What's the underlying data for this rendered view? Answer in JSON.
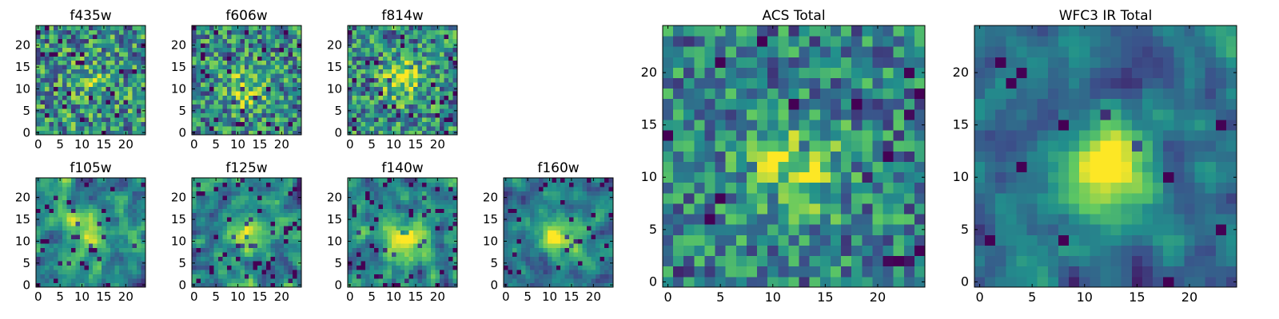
{
  "figure": {
    "colormap": "viridis",
    "colors": [
      "#440154",
      "#3b528b",
      "#21908c",
      "#5dc863",
      "#fde725"
    ]
  },
  "chart_data": [
    {
      "type": "heatmap",
      "title": "f435w",
      "grid_size": 25,
      "xticks": [
        "0",
        "5",
        "10",
        "15",
        "20"
      ],
      "yticks": [
        "0",
        "5",
        "10",
        "15",
        "20"
      ],
      "xlim": [
        0,
        25
      ],
      "ylim": [
        0,
        25
      ],
      "peak": [
        12,
        12
      ],
      "seed": 11,
      "contrast": 0.2,
      "noise": 0.85,
      "smooth": 0,
      "darkness": 0.05
    },
    {
      "type": "heatmap",
      "title": "f606w",
      "grid_size": 25,
      "xticks": [
        "0",
        "5",
        "10",
        "15",
        "20"
      ],
      "yticks": [
        "0",
        "5",
        "10",
        "15",
        "20"
      ],
      "xlim": [
        0,
        25
      ],
      "ylim": [
        0,
        25
      ],
      "peak": [
        12,
        10
      ],
      "seed": 23,
      "contrast": 0.35,
      "noise": 0.8,
      "smooth": 0,
      "darkness": 0.05
    },
    {
      "type": "heatmap",
      "title": "f814w",
      "grid_size": 25,
      "xticks": [
        "0",
        "5",
        "10",
        "15",
        "20"
      ],
      "yticks": [
        "0",
        "5",
        "10",
        "15",
        "20"
      ],
      "xlim": [
        0,
        25
      ],
      "ylim": [
        0,
        25
      ],
      "peak": [
        12,
        12
      ],
      "seed": 37,
      "contrast": 0.4,
      "noise": 0.8,
      "smooth": 0,
      "darkness": 0.05
    },
    {
      "type": "heatmap",
      "title": "f105w",
      "grid_size": 25,
      "xticks": [
        "0",
        "5",
        "10",
        "15",
        "20"
      ],
      "yticks": [
        "0",
        "5",
        "10",
        "15",
        "20"
      ],
      "xlim": [
        0,
        25
      ],
      "ylim": [
        0,
        25
      ],
      "peak": [
        12,
        12
      ],
      "seed": 41,
      "contrast": 0.45,
      "noise": 0.75,
      "smooth": 1,
      "darkness": 0.07
    },
    {
      "type": "heatmap",
      "title": "f125w",
      "grid_size": 25,
      "xticks": [
        "0",
        "5",
        "10",
        "15",
        "20"
      ],
      "yticks": [
        "0",
        "5",
        "10",
        "15",
        "20"
      ],
      "xlim": [
        0,
        25
      ],
      "ylim": [
        0,
        25
      ],
      "peak": [
        13,
        11
      ],
      "seed": 53,
      "contrast": 0.4,
      "noise": 0.75,
      "smooth": 1,
      "darkness": 0.07
    },
    {
      "type": "heatmap",
      "title": "f140w",
      "grid_size": 25,
      "xticks": [
        "0",
        "5",
        "10",
        "15",
        "20"
      ],
      "yticks": [
        "0",
        "5",
        "10",
        "15",
        "20"
      ],
      "xlim": [
        0,
        25
      ],
      "ylim": [
        0,
        25
      ],
      "peak": [
        13,
        10
      ],
      "seed": 67,
      "contrast": 0.5,
      "noise": 0.75,
      "smooth": 1,
      "darkness": 0.08
    },
    {
      "type": "heatmap",
      "title": "f160w",
      "grid_size": 25,
      "xticks": [
        "0",
        "5",
        "10",
        "15",
        "20"
      ],
      "yticks": [
        "0",
        "5",
        "10",
        "15",
        "20"
      ],
      "xlim": [
        0,
        25
      ],
      "ylim": [
        0,
        25
      ],
      "peak": [
        12,
        11
      ],
      "seed": 79,
      "contrast": 0.6,
      "noise": 0.6,
      "smooth": 1,
      "darkness": 0.05
    },
    {
      "type": "heatmap",
      "title": "ACS Total",
      "grid_size": 25,
      "xticks": [
        "0",
        "5",
        "10",
        "15",
        "20"
      ],
      "yticks": [
        "0",
        "5",
        "10",
        "15",
        "20"
      ],
      "xlim": [
        0,
        25
      ],
      "ylim": [
        0,
        25
      ],
      "peak": [
        12,
        11
      ],
      "seed": 97,
      "contrast": 0.4,
      "noise": 0.7,
      "smooth": 0,
      "darkness": 0.03
    },
    {
      "type": "heatmap",
      "title": "WFC3 IR Total",
      "grid_size": 25,
      "xticks": [
        "0",
        "5",
        "10",
        "15",
        "20"
      ],
      "yticks": [
        "0",
        "5",
        "10",
        "15",
        "20"
      ],
      "xlim": [
        0,
        25
      ],
      "ylim": [
        0,
        25
      ],
      "peak": [
        12,
        11
      ],
      "seed": 101,
      "contrast": 0.65,
      "noise": 0.55,
      "smooth": 1,
      "darkness": 0.03
    }
  ]
}
